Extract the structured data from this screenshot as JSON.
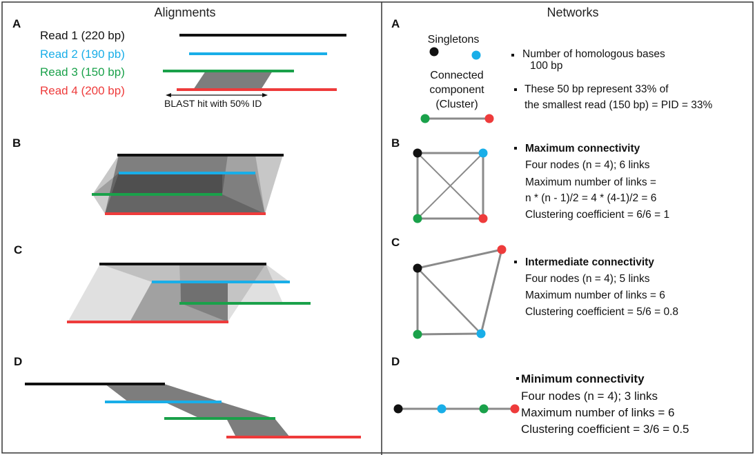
{
  "left": {
    "header": "Alignments",
    "sections": {
      "A": {
        "label": "A",
        "reads": [
          {
            "label": "Read 1 (220 bp)",
            "color": "#111111"
          },
          {
            "label": "Read 2 (190 pb)",
            "color": "#19aee8"
          },
          {
            "label": "Read 3 (150 bp)",
            "color": "#1aa14a"
          },
          {
            "label": "Read 4 (200 bp)",
            "color": "#ee3b3b"
          }
        ],
        "blast_label": "BLAST hit with 50% ID"
      },
      "B": {
        "label": "B"
      },
      "C": {
        "label": "C"
      },
      "D": {
        "label": "D"
      }
    }
  },
  "right": {
    "header": "Networks",
    "A": {
      "label": "A",
      "singletons": "Singletons",
      "component_lines": [
        "Connected",
        "component",
        "(Cluster)"
      ],
      "bullet1_lines": [
        "Number of homologous bases",
        "100 bp"
      ],
      "bullet2_lines": [
        "These 50 bp represent 33% of",
        "the smallest read (150 bp) = PID = 33%"
      ]
    },
    "B": {
      "label": "B",
      "title": "Maximum connectivity",
      "lines": [
        "Four nodes (n = 4); 6 links",
        "Maximum number of links =",
        "n * (n - 1)/2 = 4 * (4-1)/2 = 6",
        "Clustering coefficient = 6/6 = 1"
      ]
    },
    "C": {
      "label": "C",
      "title": "Intermediate connectivity",
      "lines": [
        "Four nodes (n = 4); 5 links",
        "Maximum number of links = 6",
        "Clustering coefficient = 5/6 = 0.8"
      ]
    },
    "D": {
      "label": "D",
      "title": "Minimum connectivity",
      "lines": [
        "Four nodes (n = 4); 3 links",
        "Maximum number of links = 6",
        "Clustering coefficient = 3/6 = 0.5"
      ]
    }
  },
  "colors": {
    "black": "#111111",
    "blue": "#19aee8",
    "green": "#1aa14a",
    "red": "#ee3b3b",
    "edge": "#8a8a8a"
  }
}
